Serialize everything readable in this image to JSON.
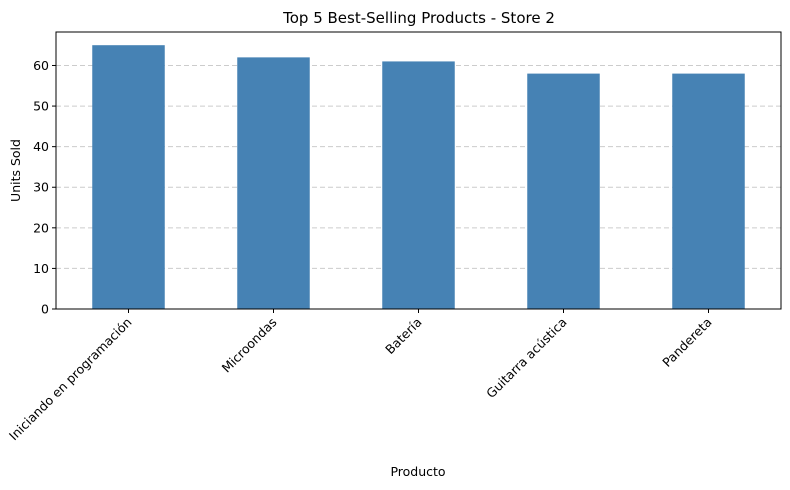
{
  "chart_data": {
    "type": "bar",
    "title": "Top 5 Best-Selling Products - Store 2",
    "xlabel": "Producto",
    "ylabel": "Units Sold",
    "categories": [
      "Iniciando en programación",
      "Microondas",
      "Batería",
      "Guitarra acústica",
      "Pandereta"
    ],
    "values": [
      65,
      62,
      61,
      58,
      58
    ],
    "ylim": [
      0,
      68.25
    ],
    "yticks": [
      0,
      10,
      20,
      30,
      40,
      50,
      60
    ],
    "grid": "y-dashed",
    "bar_color": "#4682b4"
  }
}
